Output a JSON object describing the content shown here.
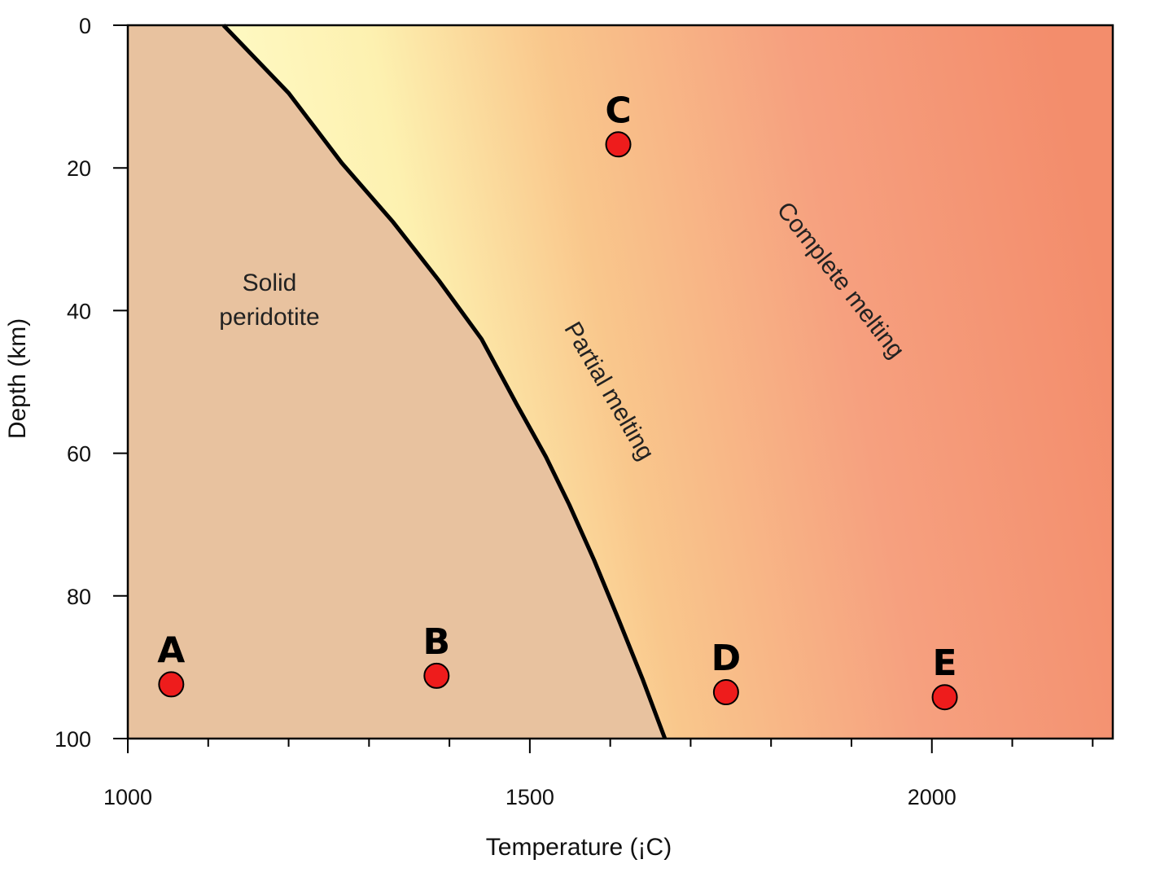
{
  "chart_data": {
    "type": "scatter",
    "title": "",
    "xlabel": "Temperature (¡C)",
    "ylabel": "Depth (km)",
    "xlim": [
      1000,
      2225
    ],
    "ylim": [
      0,
      100
    ],
    "y_inverted": true,
    "x_ticks": [
      1000,
      1500,
      2000
    ],
    "x_minor_step": 100,
    "y_ticks": [
      0,
      20,
      40,
      60,
      80,
      100
    ],
    "grid": false,
    "solidus_curve": [
      [
        1119,
        0
      ],
      [
        1200,
        9.5
      ],
      [
        1266,
        19.3
      ],
      [
        1330,
        27.6
      ],
      [
        1387,
        35.8
      ],
      [
        1440,
        44
      ],
      [
        1483,
        53
      ],
      [
        1520,
        60.5
      ],
      [
        1549,
        67.2
      ],
      [
        1580,
        75
      ],
      [
        1610,
        83.2
      ],
      [
        1640,
        91.6
      ],
      [
        1668,
        100
      ]
    ],
    "regions": [
      {
        "label_lines": [
          "Solid",
          "peridotite"
        ],
        "color": "#e8c29f"
      },
      {
        "label": "Partial melting",
        "color": "#fdf5b9"
      },
      {
        "label": "Complete melting",
        "color": "#f4906f"
      }
    ],
    "points": [
      {
        "label": "A",
        "x": 1054,
        "y": 92.4
      },
      {
        "label": "B",
        "x": 1384,
        "y": 91.2
      },
      {
        "label": "C",
        "x": 1610,
        "y": 16.7
      },
      {
        "label": "D",
        "x": 1744,
        "y": 93.5
      },
      {
        "label": "E",
        "x": 2016,
        "y": 94.2
      }
    ],
    "point_color": "#ee1c1c"
  }
}
